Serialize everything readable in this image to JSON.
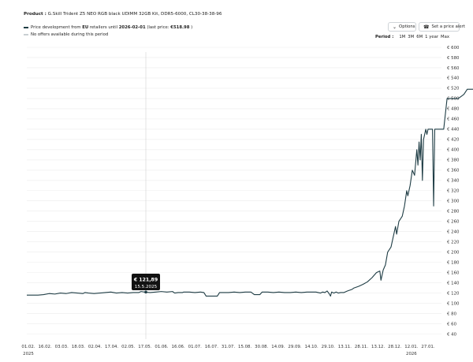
{
  "product": {
    "label": "Product :",
    "name": "G.Skill Trident Z5 NEO RGB black UDIMM 32GB Kit, DDR5-6000, CL30-38-38-96"
  },
  "legend": {
    "line1_prefix": "Price development from",
    "line1_region": "EU",
    "line1_mid": "retailers until",
    "line1_date": "2026-02-01",
    "line1_last": "(last price:",
    "line1_price": "€518.98",
    "line1_end": ")",
    "line2": "No offers available during this period"
  },
  "toolbar": {
    "options_label": "Options",
    "alert_label": "Set a price alert",
    "period_label": "Period :",
    "periods": [
      "1M",
      "3M",
      "6M",
      "1 year",
      "Max"
    ]
  },
  "tooltip": {
    "price": "€ 121,89",
    "date": "15.5.2025"
  },
  "chart_data": {
    "type": "line",
    "title": "",
    "x_ticks": [
      "01.02.",
      "16.02.",
      "03.03.",
      "18.03.",
      "02.04.",
      "17.04.",
      "02.05.",
      "17.05.",
      "01.06.",
      "16.06.",
      "01.07.",
      "16.07.",
      "31.07.",
      "15.08.",
      "30.08.",
      "14.09.",
      "29.09.",
      "14.10.",
      "29.10.",
      "13.11.",
      "28.11.",
      "13.12.",
      "28.12.",
      "12.01.",
      "27.01."
    ],
    "x_year_labels": [
      {
        "tick": "01.02.",
        "year": "2025"
      },
      {
        "tick": "12.01.",
        "year": "2026"
      }
    ],
    "y_ticks": [
      "€ 40",
      "€ 60",
      "€ 80",
      "€ 100",
      "€ 120",
      "€ 140",
      "€ 160",
      "€ 180",
      "€ 200",
      "€ 220",
      "€ 240",
      "€ 260",
      "€ 280",
      "€ 300",
      "€ 320",
      "€ 340",
      "€ 360",
      "€ 380",
      "€ 400",
      "€ 420",
      "€ 440",
      "€ 460",
      "€ 480",
      "€ 500",
      "€ 520",
      "€ 540",
      "€ 560",
      "€ 580",
      "€ 600"
    ],
    "ylim": [
      30,
      600
    ],
    "x_range_days": [
      0,
      370
    ],
    "series": [
      {
        "name": "Price development from EU retailers",
        "color": "#1f3d45",
        "points": [
          [
            0,
            116
          ],
          [
            10,
            116
          ],
          [
            15,
            117
          ],
          [
            20,
            119
          ],
          [
            25,
            118
          ],
          [
            30,
            120
          ],
          [
            35,
            119
          ],
          [
            40,
            121
          ],
          [
            45,
            120
          ],
          [
            50,
            119
          ],
          [
            52,
            121
          ],
          [
            55,
            120
          ],
          [
            60,
            119
          ],
          [
            65,
            120
          ],
          [
            70,
            121
          ],
          [
            75,
            122
          ],
          [
            80,
            120
          ],
          [
            85,
            121
          ],
          [
            90,
            120
          ],
          [
            95,
            121
          ],
          [
            100,
            121
          ],
          [
            102,
            123
          ],
          [
            105,
            122
          ],
          [
            110,
            121
          ],
          [
            115,
            122
          ],
          [
            120,
            123
          ],
          [
            125,
            122
          ],
          [
            130,
            123
          ],
          [
            132,
            120
          ],
          [
            135,
            121
          ],
          [
            139,
            121
          ],
          [
            140,
            122
          ],
          [
            145,
            122
          ],
          [
            150,
            121
          ],
          [
            155,
            122
          ],
          [
            158,
            121
          ],
          [
            160,
            114
          ],
          [
            170,
            114
          ],
          [
            172,
            121
          ],
          [
            180,
            121
          ],
          [
            185,
            122
          ],
          [
            190,
            121
          ],
          [
            195,
            122
          ],
          [
            200,
            122
          ],
          [
            203,
            117
          ],
          [
            208,
            117
          ],
          [
            210,
            122
          ],
          [
            215,
            122
          ],
          [
            220,
            121
          ],
          [
            225,
            122
          ],
          [
            230,
            121
          ],
          [
            235,
            121
          ],
          [
            240,
            122
          ],
          [
            245,
            121
          ],
          [
            250,
            122
          ],
          [
            255,
            122
          ],
          [
            258,
            122
          ],
          [
            260,
            121
          ],
          [
            262,
            120
          ],
          [
            264,
            122
          ],
          [
            266,
            121
          ],
          [
            268,
            124
          ],
          [
            270,
            118
          ],
          [
            271,
            114
          ],
          [
            272,
            122
          ],
          [
            274,
            120
          ],
          [
            276,
            122
          ],
          [
            278,
            120
          ],
          [
            280,
            121
          ],
          [
            283,
            121
          ],
          [
            286,
            124
          ],
          [
            290,
            127
          ],
          [
            292,
            130
          ],
          [
            296,
            133
          ],
          [
            300,
            137
          ],
          [
            304,
            142
          ],
          [
            308,
            150
          ],
          [
            310,
            155
          ],
          [
            312,
            160
          ],
          [
            315,
            163
          ],
          [
            316,
            145
          ],
          [
            318,
            165
          ],
          [
            320,
            175
          ],
          [
            322,
            200
          ],
          [
            325,
            210
          ],
          [
            327,
            230
          ],
          [
            329,
            250
          ],
          [
            330,
            235
          ],
          [
            332,
            260
          ],
          [
            335,
            270
          ],
          [
            337,
            290
          ],
          [
            339,
            320
          ],
          [
            340,
            310
          ],
          [
            342,
            330
          ],
          [
            344,
            360
          ],
          [
            346,
            350
          ],
          [
            348,
            400
          ],
          [
            349,
            370
          ],
          [
            350,
            415
          ],
          [
            351,
            380
          ],
          [
            352,
            430
          ],
          [
            353,
            340
          ],
          [
            354,
            420
          ],
          [
            355,
            430
          ],
          [
            356,
            440
          ],
          [
            357,
            430
          ],
          [
            358,
            440
          ],
          [
            362,
            440
          ],
          [
            363,
            290
          ],
          [
            364,
            440
          ],
          [
            370,
            440
          ],
          [
            372,
            440
          ],
          [
            375,
            500
          ],
          [
            380,
            500
          ],
          [
            385,
            500
          ],
          [
            390,
            508
          ],
          [
            393,
            518
          ],
          [
            400,
            518
          ]
        ]
      }
    ],
    "highlight": {
      "x": "15.5.2025",
      "y": 121.89
    },
    "grid": "horizontal",
    "legend_position": "top-left"
  }
}
